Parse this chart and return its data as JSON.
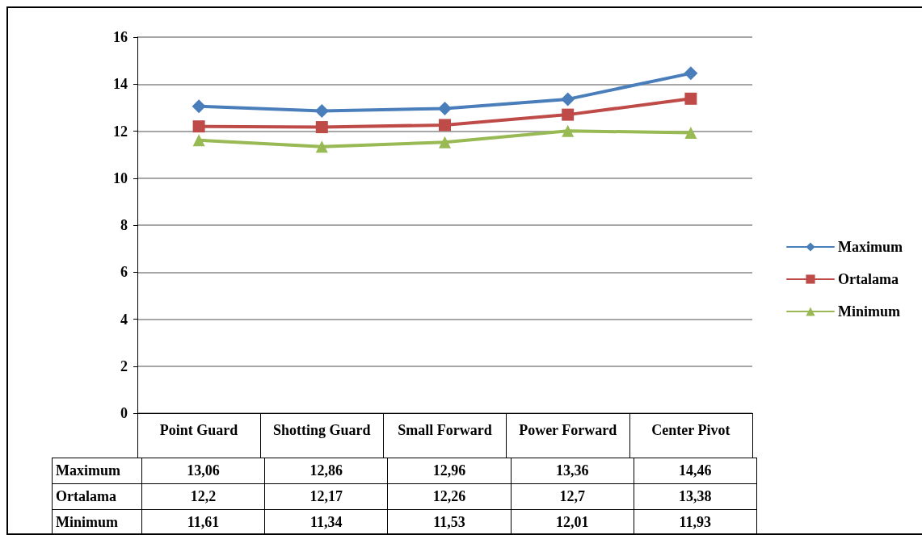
{
  "chart_data": {
    "type": "line",
    "categories": [
      "Point Guard",
      "Shotting Guard",
      "Small Forward",
      "Power Forward",
      "Center Pivot"
    ],
    "series": [
      {
        "name": "Maximum",
        "color": "#4a7ebb",
        "marker": "diamond",
        "values": [
          13.06,
          12.86,
          12.96,
          13.36,
          14.46
        ],
        "value_labels": [
          "13,06",
          "12,86",
          "12,96",
          "13,36",
          "14,46"
        ]
      },
      {
        "name": "Ortalama",
        "color": "#be4b48",
        "marker": "square",
        "values": [
          12.2,
          12.17,
          12.26,
          12.7,
          13.38
        ],
        "value_labels": [
          "12,2",
          "12,17",
          "12,26",
          "12,7",
          "13,38"
        ]
      },
      {
        "name": "Minimum",
        "color": "#98b954",
        "marker": "triangle",
        "values": [
          11.61,
          11.34,
          11.53,
          12.01,
          11.93
        ],
        "value_labels": [
          "11,61",
          "11,34",
          "11,53",
          "12,01",
          "11,93"
        ]
      }
    ],
    "ylim": [
      0,
      16
    ],
    "yticks": [
      0,
      2,
      4,
      6,
      8,
      10,
      12,
      14,
      16
    ],
    "grid": "y",
    "legend": "right",
    "line_style": "solid"
  }
}
